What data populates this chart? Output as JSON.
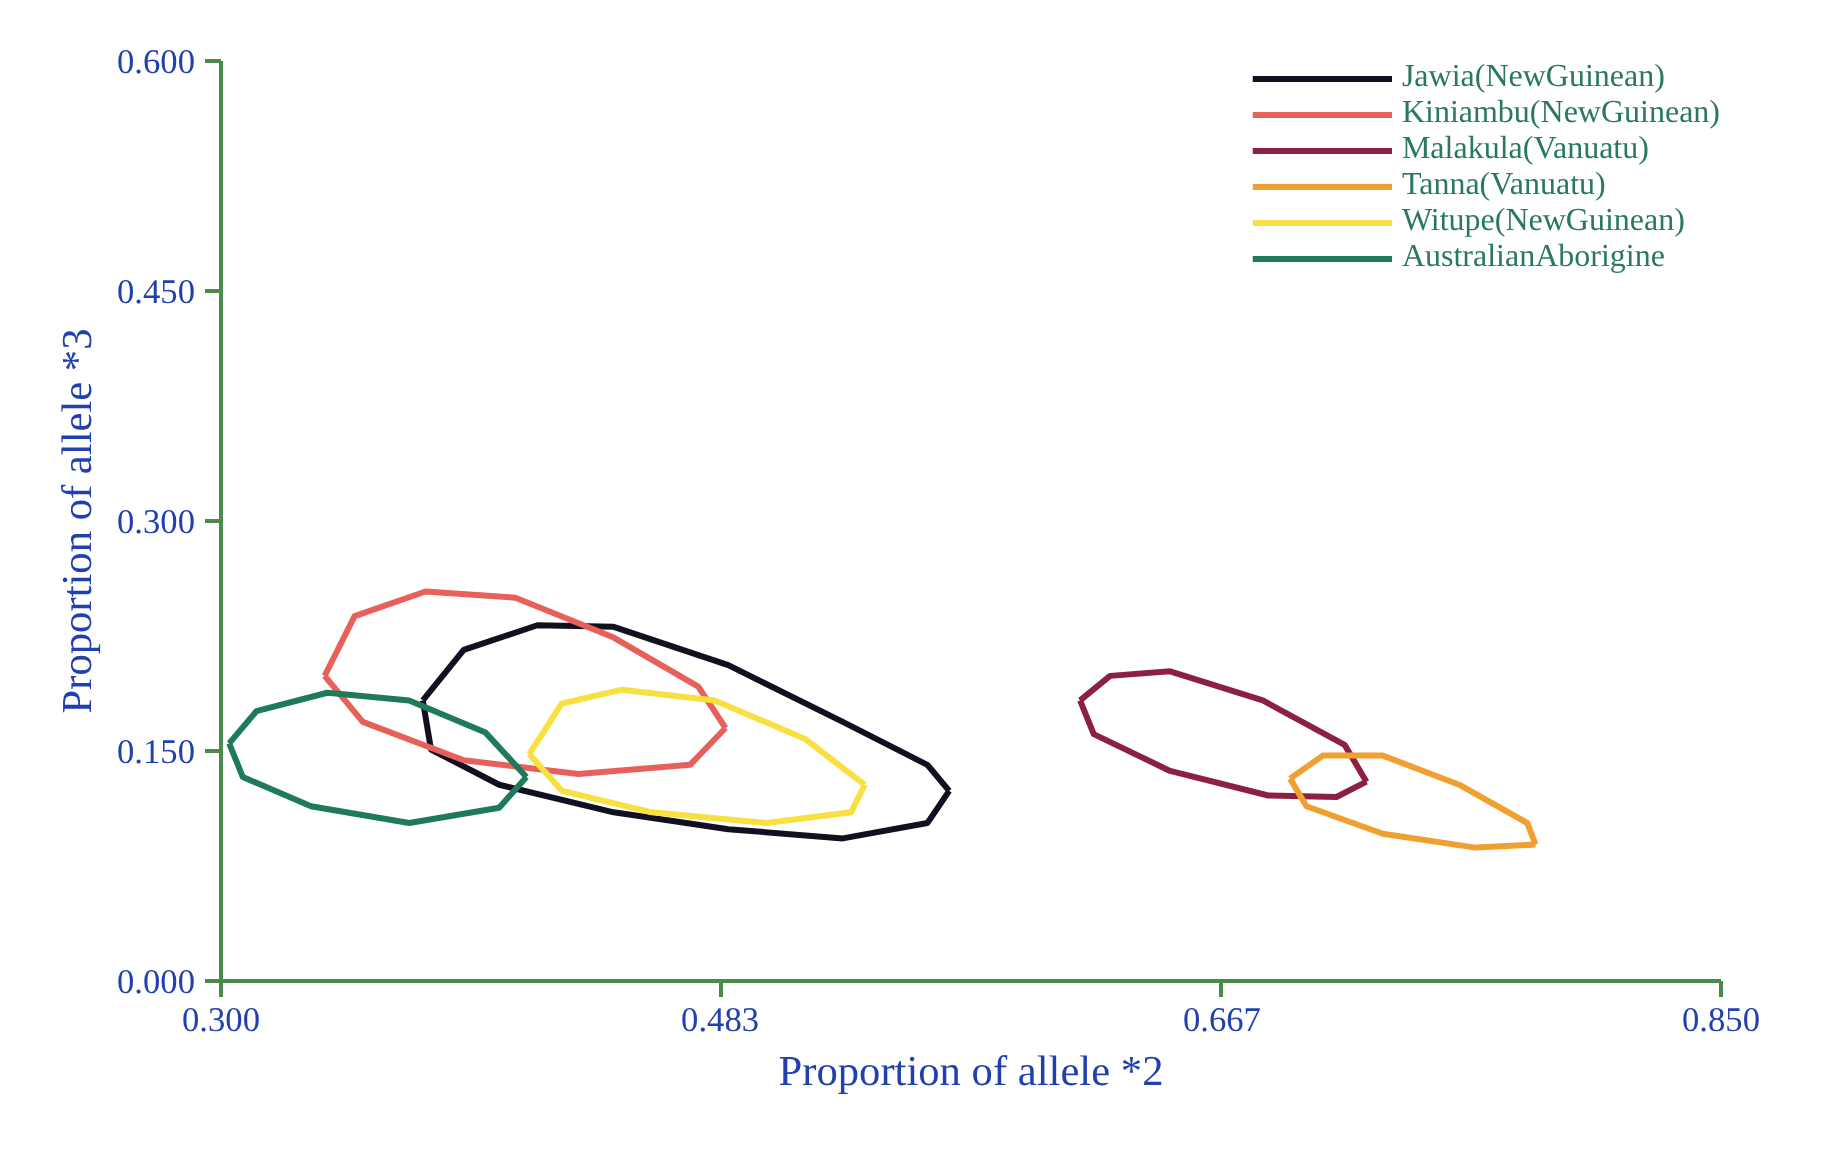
{
  "chart_data": {
    "type": "line",
    "xlabel": "Proportion of allele *2",
    "ylabel": "Proportion of allele *3",
    "xlim": [
      0.3,
      0.85
    ],
    "ylim": [
      0.0,
      0.6
    ],
    "xticks": [
      {
        "value": 0.3,
        "label": "0.300"
      },
      {
        "value": 0.483,
        "label": "0.483"
      },
      {
        "value": 0.667,
        "label": "0.667"
      },
      {
        "value": 0.85,
        "label": "0.850"
      }
    ],
    "yticks": [
      {
        "value": 0.0,
        "label": "0.000"
      },
      {
        "value": 0.15,
        "label": "0.150"
      },
      {
        "value": 0.3,
        "label": "0.300"
      },
      {
        "value": 0.45,
        "label": "0.450"
      },
      {
        "value": 0.6,
        "label": "0.600"
      }
    ],
    "grid": false,
    "legend": "top right",
    "series": [
      {
        "name": "Jawia(NewGuinean)",
        "color": "#101020",
        "x": [
          0.374,
          0.389,
          0.416,
          0.444,
          0.486,
          0.528,
          0.559,
          0.567
        ],
        "values": [
          0.183,
          0.216,
          0.232,
          0.231,
          0.206,
          0.169,
          0.141,
          0.124
        ]
      },
      {
        "color": "#101020",
        "x": [
          0.374,
          0.377,
          0.402,
          0.444,
          0.486,
          0.528,
          0.559,
          0.567
        ],
        "values": [
          0.183,
          0.151,
          0.128,
          0.11,
          0.099,
          0.093,
          0.103,
          0.124
        ]
      },
      {
        "name": "Kiniambu(NewGuinean)",
        "color": "#e8605a",
        "x": [
          0.338,
          0.349,
          0.375,
          0.408,
          0.444,
          0.475,
          0.485
        ],
        "values": [
          0.199,
          0.238,
          0.254,
          0.25,
          0.224,
          0.192,
          0.165
        ]
      },
      {
        "color": "#e8605a",
        "x": [
          0.338,
          0.352,
          0.389,
          0.431,
          0.472,
          0.485
        ],
        "values": [
          0.199,
          0.169,
          0.144,
          0.135,
          0.141,
          0.165
        ]
      },
      {
        "name": "Malakula(Vanuatu)",
        "color": "#8b2040",
        "x": [
          0.615,
          0.626,
          0.648,
          0.682,
          0.712,
          0.72
        ],
        "values": [
          0.183,
          0.199,
          0.202,
          0.183,
          0.154,
          0.13
        ]
      },
      {
        "color": "#8b2040",
        "x": [
          0.615,
          0.62,
          0.648,
          0.684,
          0.709,
          0.72
        ],
        "values": [
          0.183,
          0.161,
          0.137,
          0.121,
          0.12,
          0.13
        ]
      },
      {
        "name": "Tanna(Vanuatu)",
        "color": "#f0a030",
        "x": [
          0.692,
          0.704,
          0.726,
          0.754,
          0.779,
          0.782
        ],
        "values": [
          0.132,
          0.147,
          0.147,
          0.128,
          0.103,
          0.089
        ]
      },
      {
        "color": "#f0a030",
        "x": [
          0.692,
          0.698,
          0.726,
          0.76,
          0.782
        ],
        "values": [
          0.132,
          0.114,
          0.096,
          0.087,
          0.089
        ]
      },
      {
        "name": "Witupe(NewGuinean)",
        "color": "#f8e040",
        "x": [
          0.413,
          0.425,
          0.447,
          0.481,
          0.514,
          0.536
        ],
        "values": [
          0.148,
          0.181,
          0.19,
          0.183,
          0.158,
          0.128
        ]
      },
      {
        "color": "#f8e040",
        "x": [
          0.413,
          0.425,
          0.458,
          0.5,
          0.531,
          0.536
        ],
        "values": [
          0.148,
          0.124,
          0.11,
          0.103,
          0.11,
          0.128
        ]
      },
      {
        "name": "AustralianAborigine",
        "color": "#1e7a5a",
        "x": [
          0.303,
          0.313,
          0.339,
          0.369,
          0.397,
          0.412
        ],
        "values": [
          0.155,
          0.176,
          0.188,
          0.183,
          0.162,
          0.133
        ]
      },
      {
        "color": "#1e7a5a",
        "x": [
          0.303,
          0.308,
          0.333,
          0.369,
          0.402,
          0.412
        ],
        "values": [
          0.155,
          0.133,
          0.114,
          0.103,
          0.113,
          0.133
        ]
      }
    ]
  }
}
